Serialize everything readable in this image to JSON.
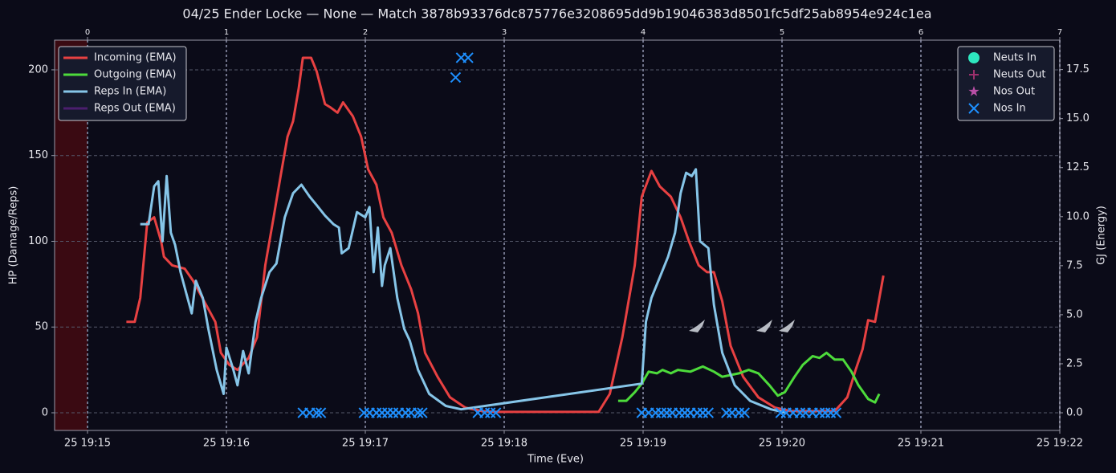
{
  "chart_data": {
    "type": "line",
    "title": "04/25 Ender Locke — None — Match 3878b93376dc875776e3208695dd9b19046383d8501fc5df25ab8954e924c1ea",
    "x_label": "Time (Eve)",
    "y_label": "HP (Damage/Reps)",
    "y2_label": "GJ (Energy)",
    "xlim": [
      14.763,
      22
    ],
    "xticks": [
      {
        "value": 15,
        "label": "25 19:15"
      },
      {
        "value": 16,
        "label": "25 19:16"
      },
      {
        "value": 17,
        "label": "25 19:17"
      },
      {
        "value": 18,
        "label": "25 19:18"
      },
      {
        "value": 19,
        "label": "25 19:19"
      },
      {
        "value": 20,
        "label": "25 19:20"
      },
      {
        "value": 21,
        "label": "25 19:21"
      },
      {
        "value": 22,
        "label": "25 19:22"
      }
    ],
    "x2lim": [
      -0.237,
      7
    ],
    "x2ticks": [
      0,
      1,
      2,
      3,
      4,
      5,
      6,
      7
    ],
    "ylim": [
      -10.3,
      217.3
    ],
    "yticks": [
      0,
      50,
      100,
      150,
      200
    ],
    "y2lim": [
      -0.9,
      19.0
    ],
    "y2ticks": [
      {
        "value": 0,
        "label": "0.0"
      },
      2.5,
      {
        "value": 5,
        "label": "5.0"
      },
      7.5,
      {
        "value": 10,
        "label": "10.0"
      },
      12.5,
      {
        "value": 15,
        "label": "15.0"
      },
      17.5
    ],
    "grid": true,
    "shaded_xspan": [
      14.763,
      15
    ],
    "shaded_color": "#3a0a12",
    "legend": "upper left",
    "marker_legend": "upper right",
    "series": [
      {
        "name": "Incoming (EMA)",
        "color": "#e84142",
        "x": [
          15.28,
          15.34,
          15.38,
          15.43,
          15.48,
          15.53,
          15.55,
          15.61,
          15.7,
          15.76,
          15.84,
          15.92,
          15.96,
          16.02,
          16.08,
          16.16,
          16.22,
          16.28,
          16.34,
          16.39,
          16.44,
          16.48,
          16.52,
          16.55,
          16.61,
          16.65,
          16.71,
          16.75,
          16.8,
          16.84,
          16.91,
          16.97,
          17.02,
          17.08,
          17.13,
          17.19,
          17.26,
          17.33,
          17.38,
          17.43,
          17.52,
          17.61,
          17.72,
          17.84,
          17.95,
          18.68,
          18.76,
          18.85,
          18.94,
          18.99,
          19.06,
          19.12,
          19.2,
          19.27,
          19.33,
          19.4,
          19.46,
          19.51,
          19.57,
          19.63,
          19.72,
          19.83,
          19.95,
          20.06,
          20.38,
          20.47,
          20.53,
          20.58,
          20.62,
          20.67,
          20.73
        ],
        "values": [
          53,
          53,
          67,
          111,
          114,
          100,
          91,
          86,
          84,
          77,
          65,
          53,
          35,
          28,
          25,
          32,
          44,
          86,
          114,
          138,
          161,
          170,
          189,
          207,
          207,
          199,
          180,
          178,
          175,
          181,
          173,
          161,
          142,
          133,
          114,
          105,
          86,
          72,
          58,
          35,
          21,
          9,
          3,
          1,
          0.5,
          0.5,
          11,
          44,
          86,
          126,
          141,
          132,
          126,
          114,
          100,
          86,
          82,
          82,
          65,
          39,
          21,
          9,
          3,
          1,
          1,
          9,
          25,
          37,
          54,
          53,
          80
        ]
      },
      {
        "name": "Outgoing (EMA)",
        "color": "#4ddb3b",
        "x": [
          18.82,
          18.88,
          18.94,
          18.99,
          19.04,
          19.1,
          19.14,
          19.2,
          19.25,
          19.34,
          19.43,
          19.51,
          19.57,
          19.63,
          19.69,
          19.76,
          19.83,
          19.91,
          19.97,
          20.02,
          20.09,
          20.15,
          20.22,
          20.27,
          20.32,
          20.38,
          20.44,
          20.5,
          20.55,
          20.62,
          20.67,
          20.7
        ],
        "values": [
          7,
          7,
          12,
          17,
          24,
          23,
          25,
          23,
          25,
          24,
          27,
          24,
          21,
          22,
          23,
          25,
          23,
          16,
          10,
          12,
          21,
          28,
          33,
          32,
          35,
          31,
          31,
          24,
          16,
          8,
          6,
          11
        ]
      },
      {
        "name": "Reps In (EMA)",
        "color": "#86c5e8",
        "x": [
          15.38,
          15.44,
          15.48,
          15.51,
          15.54,
          15.57,
          15.6,
          15.63,
          15.67,
          15.71,
          15.75,
          15.78,
          15.83,
          15.87,
          15.93,
          15.98,
          16.0,
          16.05,
          16.08,
          16.12,
          16.16,
          16.21,
          16.25,
          16.31,
          16.36,
          16.42,
          16.48,
          16.54,
          16.6,
          16.65,
          16.71,
          16.77,
          16.81,
          16.83,
          16.88,
          16.94,
          17.0,
          17.03,
          17.06,
          17.09,
          17.12,
          17.14,
          17.18,
          17.23,
          17.28,
          17.32,
          17.38,
          17.46,
          17.58,
          17.69,
          18.99,
          19.02,
          19.06,
          19.12,
          19.18,
          19.23,
          19.27,
          19.31,
          19.35,
          19.38,
          19.41,
          19.47,
          19.51,
          19.57,
          19.66,
          19.77,
          19.92,
          20.03
        ],
        "values": [
          110,
          110,
          132,
          135,
          100,
          138,
          105,
          98,
          82,
          70,
          58,
          77,
          67,
          49,
          25,
          11,
          38,
          25,
          16,
          36,
          23,
          53,
          67,
          82,
          87,
          114,
          128,
          133,
          126,
          121,
          115,
          110,
          108,
          93,
          96,
          117,
          114,
          120,
          82,
          108,
          74,
          86,
          96,
          67,
          49,
          42,
          25,
          11,
          4,
          2,
          17,
          53,
          67,
          79,
          91,
          105,
          128,
          140,
          138,
          142,
          100,
          96,
          63,
          35,
          16,
          7,
          2,
          0
        ]
      },
      {
        "name": "Reps Out (EMA)",
        "color": "#4b1e6e",
        "x": [],
        "values": []
      }
    ],
    "markers": [
      {
        "name": "Neuts In",
        "color": "#2ee8c0",
        "marker": "o",
        "axis": "y2",
        "x": [],
        "values": []
      },
      {
        "name": "Neuts Out",
        "color": "#9b2f6b",
        "marker": "+",
        "axis": "y2",
        "x": [],
        "values": []
      },
      {
        "name": "Nos Out",
        "color": "#b94fa6",
        "marker": "*",
        "axis": "y2",
        "x": [],
        "values": []
      },
      {
        "name": "Nos In",
        "color": "#1e90ff",
        "marker": "x",
        "axis": "y2",
        "x": [
          16.55,
          16.6,
          16.65,
          16.68,
          16.99,
          17.03,
          17.08,
          17.12,
          17.16,
          17.2,
          17.24,
          17.29,
          17.33,
          17.38,
          17.41,
          17.65,
          17.69,
          17.74,
          17.81,
          17.86,
          17.9,
          17.94,
          18.99,
          19.04,
          19.09,
          19.13,
          19.17,
          19.21,
          19.26,
          19.3,
          19.34,
          19.39,
          19.43,
          19.47,
          19.6,
          19.64,
          19.69,
          19.73,
          19.99,
          20.03,
          20.08,
          20.13,
          20.17,
          20.22,
          20.27,
          20.31,
          20.35,
          20.39
        ],
        "values": [
          0,
          0,
          0,
          0,
          0,
          0,
          0,
          0,
          0,
          0,
          0,
          0,
          0,
          0,
          0,
          17.1,
          18.1,
          18.1,
          0,
          0,
          0,
          0,
          0,
          0,
          0,
          0,
          0,
          0,
          0,
          0,
          0,
          0,
          0,
          0,
          0,
          0,
          0,
          0,
          0,
          0,
          0,
          0,
          0,
          0,
          0,
          0,
          0,
          0
        ]
      }
    ]
  }
}
